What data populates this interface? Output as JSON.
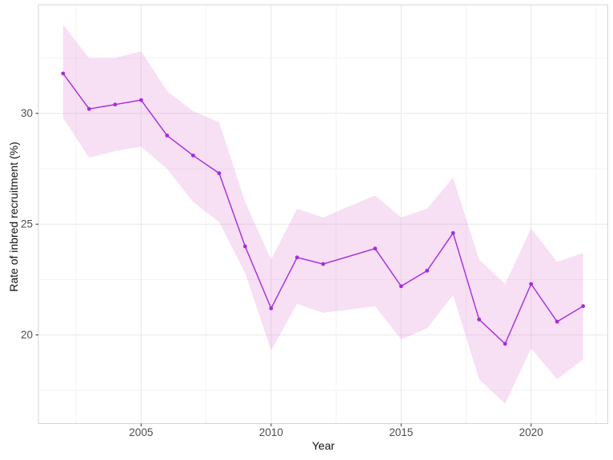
{
  "figure": {
    "background": "#ffffff",
    "panel_border_color": "#d4d4d4",
    "grid_major_color": "#e7e7e7",
    "grid_minor_color": "#f3f3f3",
    "tick_mark_color": "#333333",
    "tick_label_color": "#4d4d4d",
    "axis_title_color": "#111111"
  },
  "chart_data": {
    "type": "line",
    "title": "",
    "xlabel": "Year",
    "ylabel": "Rate of inbred recruitment (%)",
    "grid": true,
    "legend": "none",
    "xlim": [
      2001.05,
      2022.95
    ],
    "ylim": [
      16.0,
      34.9
    ],
    "x_ticks": [
      2005,
      2010,
      2015,
      2020
    ],
    "x_tick_labels": [
      "2005",
      "2010",
      "2015",
      "2020"
    ],
    "x_minor_ticks": [
      2002.5,
      2007.5,
      2012.5,
      2017.5,
      2022.5
    ],
    "y_ticks": [
      20,
      25,
      30
    ],
    "y_tick_labels": [
      "20",
      "25",
      "30"
    ],
    "y_minor_ticks": [
      17.5,
      22.5,
      27.5,
      32.5
    ],
    "series": [
      {
        "name": "Rate of inbred recruitment",
        "color": "#a52bdb",
        "marker": "circle",
        "x": [
          2002,
          2003,
          2004,
          2005,
          2006,
          2007,
          2008,
          2009,
          2010,
          2011,
          2012,
          2014,
          2015,
          2016,
          2017,
          2018,
          2019,
          2020,
          2021,
          2022
        ],
        "y": [
          31.8,
          30.2,
          30.4,
          30.6,
          29.0,
          28.1,
          27.3,
          24.0,
          21.2,
          23.5,
          23.2,
          23.9,
          22.2,
          22.9,
          24.6,
          20.7,
          19.6,
          22.3,
          20.6,
          21.3
        ]
      }
    ],
    "ribbon": {
      "name": "confidence-interval",
      "fill": "rgba(230,150,220,0.30)",
      "x": [
        2002,
        2003,
        2004,
        2005,
        2006,
        2007,
        2008,
        2009,
        2010,
        2011,
        2012,
        2014,
        2015,
        2016,
        2017,
        2018,
        2019,
        2020,
        2021,
        2022
      ],
      "upper": [
        34.0,
        32.5,
        32.5,
        32.8,
        31.0,
        30.1,
        29.6,
        26.0,
        23.4,
        25.7,
        25.3,
        26.3,
        25.3,
        25.7,
        27.1,
        23.4,
        22.3,
        24.8,
        23.3,
        23.7
      ],
      "lower": [
        29.8,
        28.0,
        28.3,
        28.5,
        27.5,
        26.0,
        25.1,
        22.8,
        19.3,
        21.4,
        21.0,
        21.3,
        19.8,
        20.3,
        21.8,
        18.0,
        16.9,
        19.4,
        18.0,
        18.9
      ]
    }
  }
}
